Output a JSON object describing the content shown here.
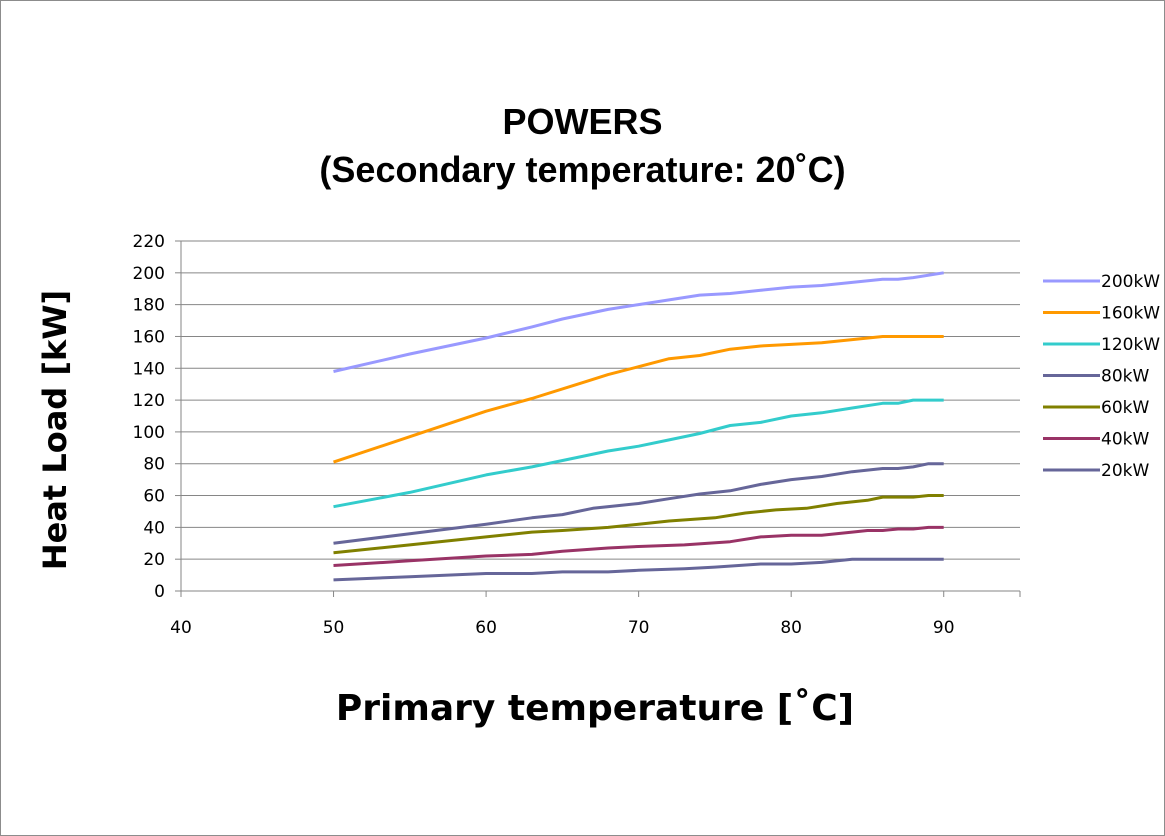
{
  "chart_data": {
    "type": "line",
    "title": "POWERS",
    "subtitle": "(Secondary temperature: 20˚C)",
    "xlabel": "Primary temperature [˚C]",
    "ylabel": "Heat Load [kW]",
    "xlim": [
      40,
      95
    ],
    "ylim": [
      0,
      220
    ],
    "xticks": [
      40,
      50,
      60,
      70,
      80,
      90
    ],
    "yticks": [
      0,
      20,
      40,
      60,
      80,
      100,
      120,
      140,
      160,
      180,
      200,
      220
    ],
    "grid": "horizontal",
    "legend_position": "right",
    "series": [
      {
        "name": "200kW",
        "color": "#9999ff",
        "points": [
          [
            50,
            138
          ],
          [
            55,
            149
          ],
          [
            60,
            159
          ],
          [
            63,
            166
          ],
          [
            65,
            171
          ],
          [
            68,
            177
          ],
          [
            70,
            180
          ],
          [
            72,
            183
          ],
          [
            74,
            186
          ],
          [
            76,
            187
          ],
          [
            78,
            189
          ],
          [
            80,
            191
          ],
          [
            82,
            192
          ],
          [
            84,
            194
          ],
          [
            86,
            196
          ],
          [
            87,
            196
          ],
          [
            88,
            197
          ],
          [
            90,
            200
          ]
        ]
      },
      {
        "name": "160kW",
        "color": "#ff9900",
        "points": [
          [
            50,
            81
          ],
          [
            55,
            97
          ],
          [
            60,
            113
          ],
          [
            63,
            121
          ],
          [
            66,
            130
          ],
          [
            68,
            136
          ],
          [
            70,
            141
          ],
          [
            72,
            146
          ],
          [
            74,
            148
          ],
          [
            76,
            152
          ],
          [
            78,
            154
          ],
          [
            80,
            155
          ],
          [
            82,
            156
          ],
          [
            84,
            158
          ],
          [
            86,
            160
          ],
          [
            88,
            160
          ],
          [
            90,
            160
          ]
        ]
      },
      {
        "name": "120kW",
        "color": "#33cccc",
        "points": [
          [
            50,
            53
          ],
          [
            55,
            62
          ],
          [
            60,
            73
          ],
          [
            63,
            78
          ],
          [
            66,
            84
          ],
          [
            68,
            88
          ],
          [
            70,
            91
          ],
          [
            72,
            95
          ],
          [
            74,
            99
          ],
          [
            76,
            104
          ],
          [
            78,
            106
          ],
          [
            80,
            110
          ],
          [
            82,
            112
          ],
          [
            84,
            115
          ],
          [
            86,
            118
          ],
          [
            87,
            118
          ],
          [
            88,
            120
          ],
          [
            90,
            120
          ]
        ]
      },
      {
        "name": "80kW",
        "color": "#666699",
        "points": [
          [
            50,
            30
          ],
          [
            55,
            36
          ],
          [
            60,
            42
          ],
          [
            63,
            46
          ],
          [
            65,
            48
          ],
          [
            67,
            52
          ],
          [
            70,
            55
          ],
          [
            72,
            58
          ],
          [
            74,
            61
          ],
          [
            76,
            63
          ],
          [
            78,
            67
          ],
          [
            80,
            70
          ],
          [
            82,
            72
          ],
          [
            84,
            75
          ],
          [
            86,
            77
          ],
          [
            87,
            77
          ],
          [
            88,
            78
          ],
          [
            89,
            80
          ],
          [
            90,
            80
          ]
        ]
      },
      {
        "name": "60kW",
        "color": "#808000",
        "points": [
          [
            50,
            24
          ],
          [
            55,
            29
          ],
          [
            60,
            34
          ],
          [
            63,
            37
          ],
          [
            65,
            38
          ],
          [
            68,
            40
          ],
          [
            70,
            42
          ],
          [
            72,
            44
          ],
          [
            75,
            46
          ],
          [
            77,
            49
          ],
          [
            79,
            51
          ],
          [
            81,
            52
          ],
          [
            83,
            55
          ],
          [
            85,
            57
          ],
          [
            86,
            59
          ],
          [
            88,
            59
          ],
          [
            89,
            60
          ],
          [
            90,
            60
          ]
        ]
      },
      {
        "name": "40kW",
        "color": "#993366",
        "points": [
          [
            50,
            16
          ],
          [
            55,
            19
          ],
          [
            60,
            22
          ],
          [
            63,
            23
          ],
          [
            65,
            25
          ],
          [
            68,
            27
          ],
          [
            70,
            28
          ],
          [
            73,
            29
          ],
          [
            76,
            31
          ],
          [
            78,
            34
          ],
          [
            80,
            35
          ],
          [
            82,
            35
          ],
          [
            84,
            37
          ],
          [
            85,
            38
          ],
          [
            86,
            38
          ],
          [
            87,
            39
          ],
          [
            88,
            39
          ],
          [
            89,
            40
          ],
          [
            90,
            40
          ]
        ]
      },
      {
        "name": "20kW",
        "color": "#666699",
        "points": [
          [
            50,
            7
          ],
          [
            55,
            9
          ],
          [
            60,
            11
          ],
          [
            63,
            11
          ],
          [
            65,
            12
          ],
          [
            68,
            12
          ],
          [
            70,
            13
          ],
          [
            73,
            14
          ],
          [
            75,
            15
          ],
          [
            78,
            17
          ],
          [
            80,
            17
          ],
          [
            82,
            18
          ],
          [
            84,
            20
          ],
          [
            86,
            20
          ],
          [
            88,
            20
          ],
          [
            90,
            20
          ]
        ]
      }
    ]
  }
}
